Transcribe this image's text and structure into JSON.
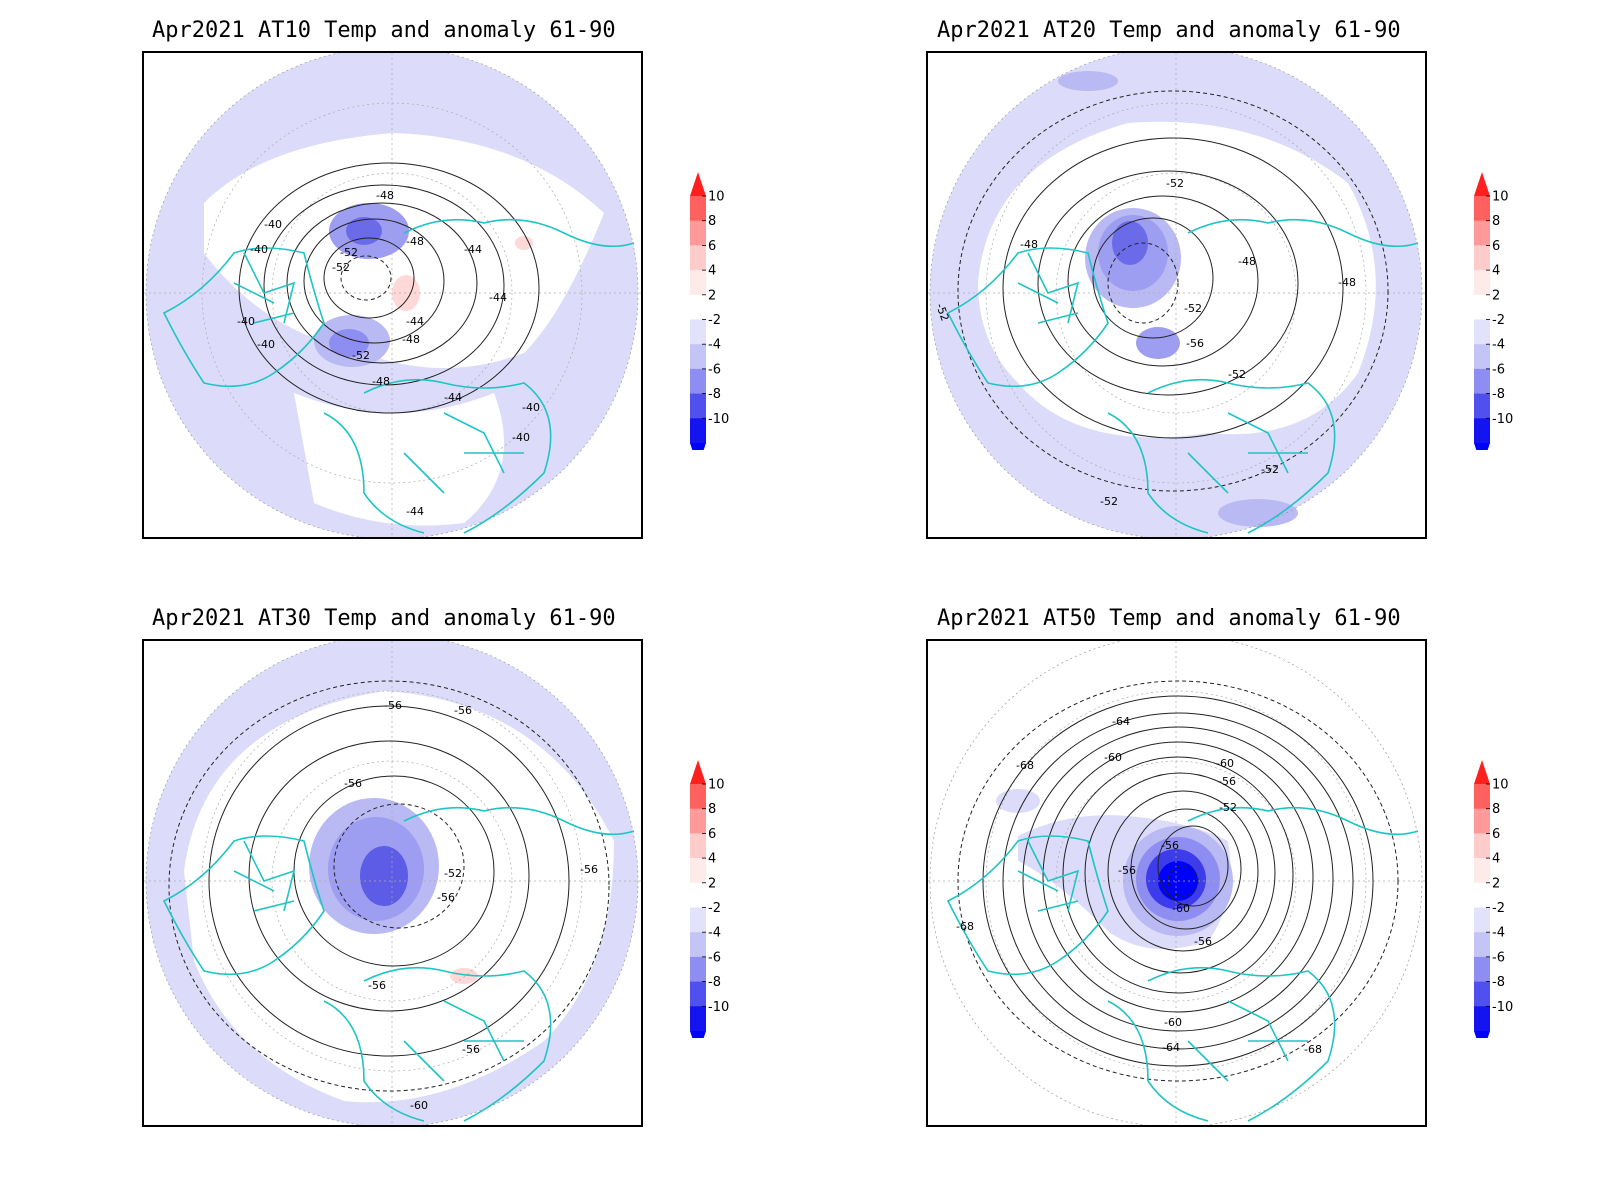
{
  "panels": [
    {
      "id": "at10",
      "title": "Apr2021 AT10 Temp and anomaly 61-90",
      "contour_labels": [
        "-40",
        "-40",
        "-40",
        "-40",
        "-44",
        "-44",
        "-44",
        "-44",
        "-48",
        "-48",
        "-48",
        "-48",
        "-52",
        "-52",
        "-52",
        "-40",
        "-40",
        "-44"
      ]
    },
    {
      "id": "at20",
      "title": "Apr2021 AT20 Temp and anomaly 61-90",
      "contour_labels": [
        "-52",
        "-48",
        "-48",
        "-48",
        "-52",
        "-56",
        "-52",
        "-52",
        "-52",
        "-52"
      ]
    },
    {
      "id": "at30",
      "title": "Apr2021 AT30 Temp and anomaly 61-90",
      "contour_labels": [
        "-56",
        "-56",
        "-56",
        "-52",
        "-56",
        "-56",
        "-56",
        "-56",
        "-60"
      ]
    },
    {
      "id": "at50",
      "title": "Apr2021 AT50 Temp and anomaly 61-90",
      "contour_labels": [
        "-64",
        "-60",
        "-60",
        "-56",
        "-52",
        "-68",
        "-56",
        "-56",
        "-60",
        "-56",
        "-68",
        "-60",
        "-64",
        "-68"
      ]
    }
  ],
  "colorbar": {
    "labels": [
      "10",
      "8",
      "6",
      "4",
      "2",
      "-2",
      "-4",
      "-6",
      "-8",
      "-10"
    ],
    "colors": [
      "#ff1f1f",
      "#ff6060",
      "#ff9a9a",
      "#ffcccc",
      "#ffeaea",
      "#ffffff",
      "#e2e2fb",
      "#c4c4f7",
      "#8e8ef2",
      "#5050ef",
      "#1414f0",
      "#0000ff"
    ]
  },
  "colors": {
    "coastline": "#20c4c4",
    "anomaly_light": "#dcdcfa",
    "anomaly_mid": "#b9b9f4",
    "anomaly_strong": "#7f7fee",
    "anomaly_deep": "#3c3ceb",
    "anomaly_max": "#0000ff",
    "anomaly_pos": "#ffd8d8"
  }
}
